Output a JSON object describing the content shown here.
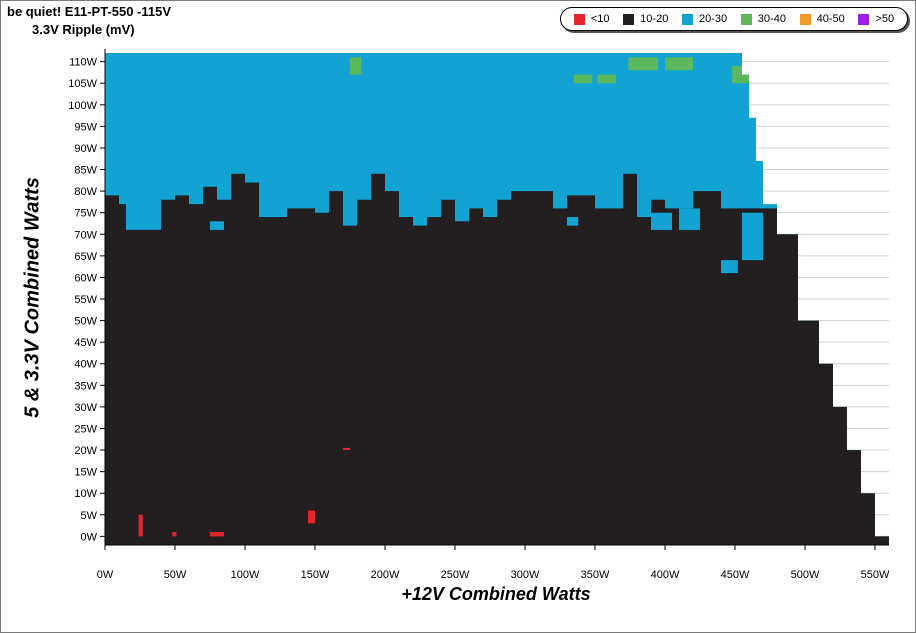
{
  "chart_data": {
    "type": "heatmap",
    "title": "be quiet! E11-PT-550 -115V",
    "subtitle": "3.3V Ripple (mV)",
    "xlabel": "+12V Combined Watts",
    "ylabel": "5 & 3.3V Combined Watts",
    "xlim": [
      0,
      560
    ],
    "ylim": [
      -2,
      112
    ],
    "x_ticks": [
      "0W",
      "50W",
      "100W",
      "150W",
      "200W",
      "250W",
      "300W",
      "350W",
      "400W",
      "450W",
      "500W",
      "550W"
    ],
    "y_ticks": [
      "0W",
      "5W",
      "10W",
      "15W",
      "20W",
      "25W",
      "30W",
      "35W",
      "40W",
      "45W",
      "50W",
      "55W",
      "60W",
      "65W",
      "70W",
      "75W",
      "80W",
      "85W",
      "90W",
      "95W",
      "100W",
      "105W",
      "110W"
    ],
    "grid": "horizontal",
    "legend_position": "top-right",
    "legend": [
      {
        "label": "<10",
        "color": "#e3262b"
      },
      {
        "label": "10-20",
        "color": "#231f20"
      },
      {
        "label": "20-30",
        "color": "#12a3d3"
      },
      {
        "label": "30-40",
        "color": "#5cb85c"
      },
      {
        "label": "40-50",
        "color": "#ef9a2b"
      },
      {
        "label": ">50",
        "color": "#9b1ee6"
      }
    ],
    "load_limit": [
      [
        0,
        112
      ],
      [
        455,
        112
      ],
      [
        455,
        107
      ],
      [
        460,
        107
      ],
      [
        460,
        97
      ],
      [
        465,
        97
      ],
      [
        465,
        87
      ],
      [
        470,
        87
      ],
      [
        470,
        77
      ],
      [
        480,
        77
      ],
      [
        480,
        70
      ],
      [
        495,
        70
      ],
      [
        495,
        50
      ],
      [
        510,
        50
      ],
      [
        510,
        40
      ],
      [
        520,
        40
      ],
      [
        520,
        30
      ],
      [
        530,
        30
      ],
      [
        530,
        20
      ],
      [
        540,
        20
      ],
      [
        540,
        10
      ],
      [
        550,
        10
      ],
      [
        550,
        0
      ],
      [
        560,
        0
      ],
      [
        560,
        -2
      ],
      [
        0,
        -2
      ]
    ],
    "ripple_10_20_upper_boundary": [
      [
        0,
        79
      ],
      [
        10,
        77
      ],
      [
        15,
        71
      ],
      [
        30,
        71
      ],
      [
        40,
        78
      ],
      [
        50,
        79
      ],
      [
        60,
        77
      ],
      [
        70,
        81
      ],
      [
        80,
        78
      ],
      [
        90,
        84
      ],
      [
        100,
        82
      ],
      [
        110,
        74
      ],
      [
        130,
        76
      ],
      [
        150,
        75
      ],
      [
        160,
        80
      ],
      [
        170,
        73
      ],
      [
        180,
        78
      ],
      [
        190,
        84
      ],
      [
        200,
        80
      ],
      [
        210,
        74
      ],
      [
        220,
        72
      ],
      [
        230,
        74
      ],
      [
        240,
        78
      ],
      [
        250,
        73
      ],
      [
        260,
        76
      ],
      [
        270,
        74
      ],
      [
        280,
        78
      ],
      [
        290,
        80
      ],
      [
        300,
        80
      ],
      [
        320,
        76
      ],
      [
        330,
        79
      ],
      [
        350,
        76
      ],
      [
        370,
        84
      ],
      [
        380,
        74
      ],
      [
        390,
        78
      ],
      [
        400,
        76
      ],
      [
        420,
        80
      ],
      [
        440,
        76
      ],
      [
        455,
        76
      ],
      [
        470,
        76
      ]
    ],
    "ripple_20_30_pockets_in_black": [
      {
        "x": [
          75,
          85
        ],
        "y": [
          71,
          73
        ]
      },
      {
        "x": [
          170,
          180
        ],
        "y": [
          72,
          74
        ]
      },
      {
        "x": [
          330,
          338
        ],
        "y": [
          72,
          74
        ]
      },
      {
        "x": [
          390,
          405
        ],
        "y": [
          71,
          75
        ]
      },
      {
        "x": [
          410,
          425
        ],
        "y": [
          71,
          76
        ]
      },
      {
        "x": [
          455,
          470
        ],
        "y": [
          64,
          75
        ]
      },
      {
        "x": [
          440,
          452
        ],
        "y": [
          61,
          64
        ]
      },
      {
        "x": [
          25,
          32
        ],
        "y": [
          76,
          78
        ]
      }
    ],
    "ripple_30_40_regions": [
      {
        "x": [
          175,
          183
        ],
        "y": [
          107,
          111
        ]
      },
      {
        "x": [
          335,
          348
        ],
        "y": [
          105,
          107
        ]
      },
      {
        "x": [
          352,
          365
        ],
        "y": [
          105,
          107
        ]
      },
      {
        "x": [
          374,
          395
        ],
        "y": [
          108,
          111
        ]
      },
      {
        "x": [
          400,
          420
        ],
        "y": [
          108,
          111
        ]
      },
      {
        "x": [
          448,
          460
        ],
        "y": [
          105,
          109
        ]
      }
    ],
    "ripple_lt10_regions": [
      {
        "x": [
          24,
          27
        ],
        "y": [
          0,
          5
        ]
      },
      {
        "x": [
          48,
          51
        ],
        "y": [
          0,
          1
        ]
      },
      {
        "x": [
          75,
          85
        ],
        "y": [
          0,
          1
        ]
      },
      {
        "x": [
          145,
          150
        ],
        "y": [
          3,
          6
        ]
      },
      {
        "x": [
          170,
          175
        ],
        "y": [
          20,
          20.5
        ]
      }
    ]
  }
}
